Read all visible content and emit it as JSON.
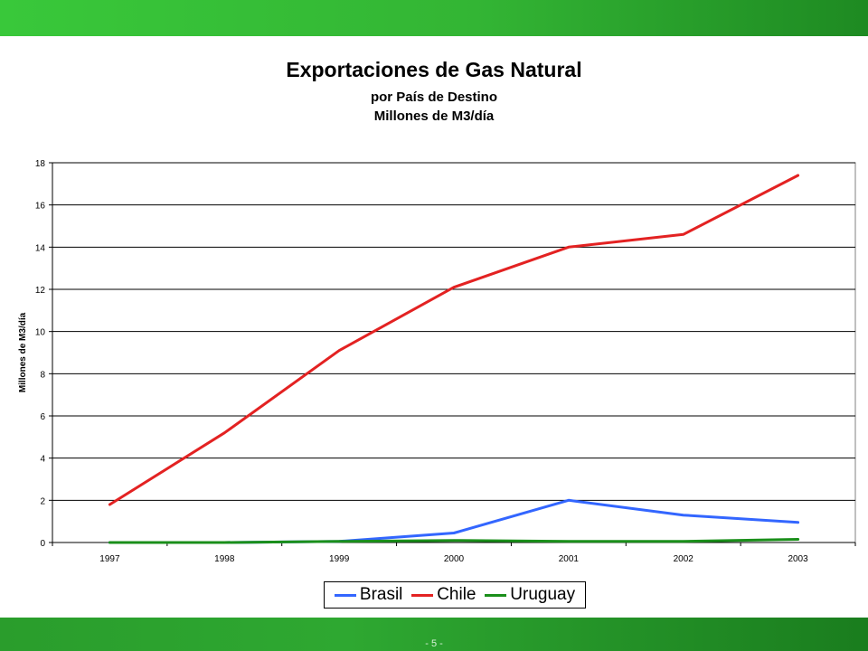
{
  "page": {
    "page_number": "- 5 -"
  },
  "chart_data": {
    "type": "line",
    "title": "Exportaciones de Gas Natural",
    "subtitle_1": "por País de Destino",
    "subtitle_2": "Millones de M3/día",
    "xlabel": "",
    "ylabel": "Millones de M3/día",
    "categories": [
      "1997",
      "1998",
      "1999",
      "2000",
      "2001",
      "2002",
      "2003"
    ],
    "ylim": [
      0,
      18
    ],
    "yticks": [
      0,
      2,
      4,
      6,
      8,
      10,
      12,
      14,
      16,
      18
    ],
    "grid": true,
    "legend_position": "bottom",
    "series": [
      {
        "name": "Brasil",
        "color": "#3366ff",
        "values": [
          0,
          0,
          0.05,
          0.45,
          2.0,
          1.3,
          0.95
        ]
      },
      {
        "name": "Chile",
        "color": "#e32222",
        "values": [
          1.8,
          5.2,
          9.1,
          12.1,
          14.0,
          14.6,
          17.4
        ]
      },
      {
        "name": "Uruguay",
        "color": "#1a8f1a",
        "values": [
          0,
          0,
          0.05,
          0.1,
          0.05,
          0.05,
          0.15
        ]
      }
    ]
  }
}
